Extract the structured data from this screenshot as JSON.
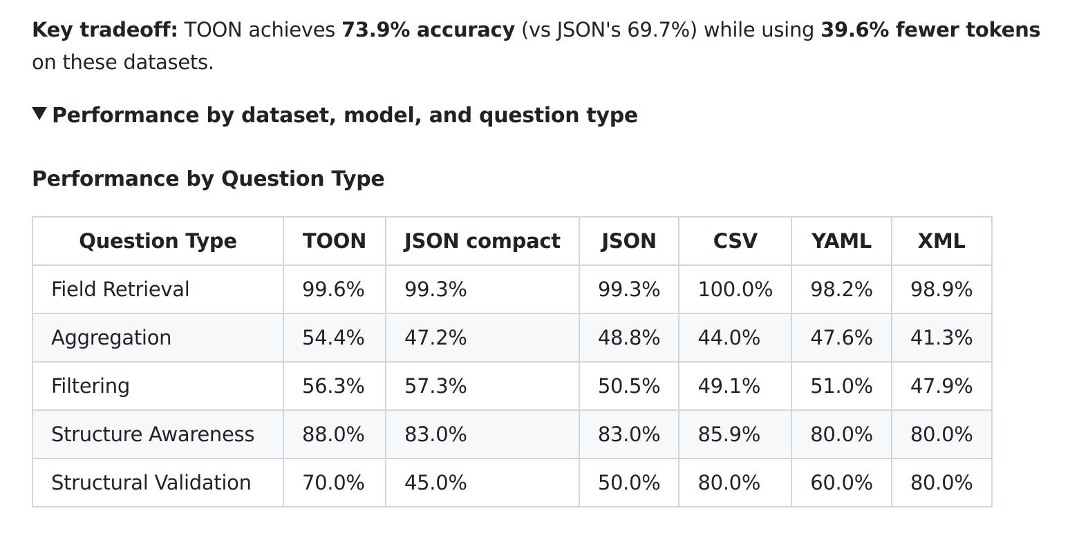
{
  "intro": {
    "label": "Key tradeoff:",
    "text1": " TOON achieves ",
    "accuracy": "73.9% accuracy",
    "text2": " (vs JSON's 69.7%) while using ",
    "tokens": "39.6% fewer tokens",
    "text3": " on these datasets."
  },
  "details": {
    "summary": "Performance by dataset, model, and question type",
    "expanded": true
  },
  "section": {
    "heading": "Performance by Question Type"
  },
  "table": {
    "headers": [
      "Question Type",
      "TOON",
      "JSON compact",
      "JSON",
      "CSV",
      "YAML",
      "XML"
    ],
    "rows": [
      [
        "Field Retrieval",
        "99.6%",
        "99.3%",
        "99.3%",
        "100.0%",
        "98.2%",
        "98.9%"
      ],
      [
        "Aggregation",
        "54.4%",
        "47.2%",
        "48.8%",
        "44.0%",
        "47.6%",
        "41.3%"
      ],
      [
        "Filtering",
        "56.3%",
        "57.3%",
        "50.5%",
        "49.1%",
        "51.0%",
        "47.9%"
      ],
      [
        "Structure Awareness",
        "88.0%",
        "83.0%",
        "83.0%",
        "85.9%",
        "80.0%",
        "80.0%"
      ],
      [
        "Structural Validation",
        "70.0%",
        "45.0%",
        "50.0%",
        "80.0%",
        "60.0%",
        "80.0%"
      ]
    ]
  }
}
